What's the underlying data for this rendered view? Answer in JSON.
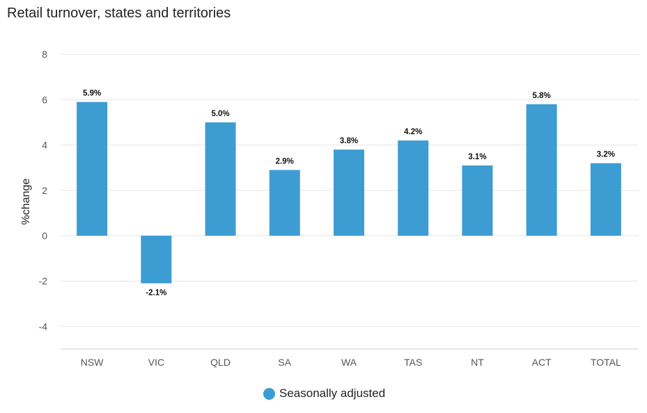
{
  "chart_data": {
    "type": "bar",
    "title": "Retail turnover, states and territories",
    "ylabel": "%change",
    "xlabel": "",
    "ylim": [
      -5,
      8
    ],
    "yticks": [
      8,
      6,
      4,
      2,
      0,
      -2,
      -4
    ],
    "categories": [
      "NSW",
      "VIC",
      "QLD",
      "SA",
      "WA",
      "TAS",
      "NT",
      "ACT",
      "TOTAL"
    ],
    "series": [
      {
        "name": "Seasonally adjusted",
        "color": "#3d9dd3",
        "values": [
          5.9,
          -2.1,
          5.0,
          2.9,
          3.8,
          4.2,
          3.1,
          5.8,
          3.2
        ],
        "labels": [
          "5.9%",
          "-2.1%",
          "5.0%",
          "2.9%",
          "3.8%",
          "4.2%",
          "3.1%",
          "5.8%",
          "3.2%"
        ]
      }
    ],
    "grid": true,
    "legend_position": "bottom-center"
  }
}
